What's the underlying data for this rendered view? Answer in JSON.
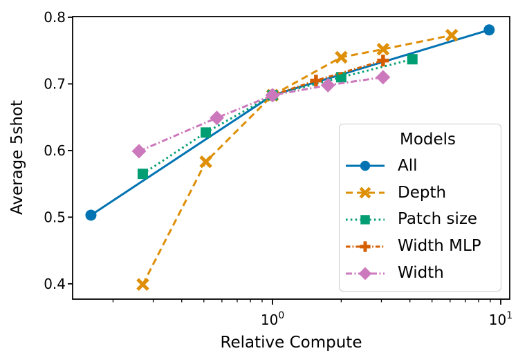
{
  "chart_data": {
    "type": "line",
    "title": "",
    "xlabel": "Relative Compute",
    "ylabel": "Average 5shot",
    "xscale": "log",
    "yscale": "linear",
    "xlim": [
      0.133,
      10.95
    ],
    "ylim": [
      0.377,
      0.801
    ],
    "grid": false,
    "yticks": [
      0.4,
      0.5,
      0.6,
      0.7,
      0.8
    ],
    "xticks": [
      {
        "value": 1,
        "base": "10",
        "exp": "0"
      },
      {
        "value": 10,
        "base": "10",
        "exp": "1"
      }
    ],
    "xminor_ticks": [
      0.2,
      0.3,
      0.4,
      0.5,
      0.6,
      0.7,
      0.8,
      0.9,
      2,
      3,
      4,
      5,
      6,
      7,
      8,
      9
    ],
    "legend": {
      "title": "Models",
      "position": "lower right"
    },
    "series": [
      {
        "name": "All",
        "color": "#0173b2",
        "linestyle": "solid",
        "marker": "circle",
        "points": [
          [
            0.16,
            0.503
          ],
          [
            1.0,
            0.683
          ],
          [
            8.9,
            0.781
          ]
        ]
      },
      {
        "name": "Depth",
        "color": "#de8f05",
        "linestyle": "dashed",
        "marker": "x",
        "points": [
          [
            0.27,
            0.399
          ],
          [
            0.51,
            0.583
          ],
          [
            1.0,
            0.683
          ],
          [
            2.0,
            0.74
          ],
          [
            3.05,
            0.752
          ],
          [
            6.1,
            0.773
          ]
        ]
      },
      {
        "name": "Patch size",
        "color": "#029e73",
        "linestyle": "dotted",
        "marker": "square",
        "points": [
          [
            0.27,
            0.565
          ],
          [
            0.51,
            0.627
          ],
          [
            1.0,
            0.683
          ],
          [
            2.0,
            0.71
          ],
          [
            4.1,
            0.737
          ]
        ]
      },
      {
        "name": "Width MLP",
        "color": "#d55e00",
        "linestyle": "dashdot",
        "marker": "plus",
        "points": [
          [
            1.0,
            0.683
          ],
          [
            1.55,
            0.705
          ],
          [
            3.05,
            0.735
          ]
        ]
      },
      {
        "name": "Width",
        "color": "#cc78bc",
        "linestyle": "dashdot-long",
        "marker": "diamond",
        "points": [
          [
            0.26,
            0.599
          ],
          [
            0.57,
            0.649
          ],
          [
            1.0,
            0.683
          ],
          [
            1.75,
            0.698
          ],
          [
            3.05,
            0.71
          ]
        ]
      }
    ]
  }
}
